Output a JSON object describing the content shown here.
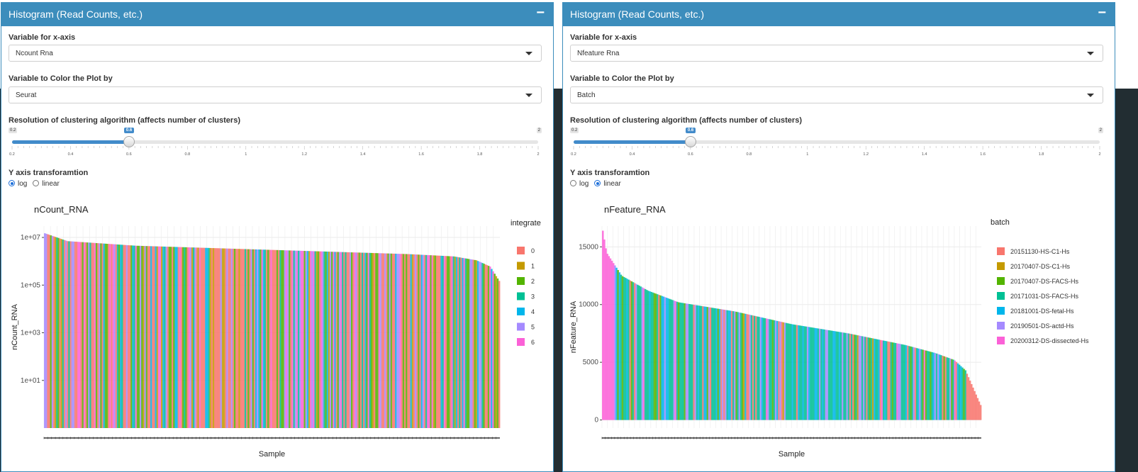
{
  "panels": [
    {
      "title": "Histogram (Read Counts, etc.)",
      "x_axis_label": "Variable for x-axis",
      "x_axis_value": "Ncount Rna",
      "color_label": "Variable to Color the Plot by",
      "color_value": "Seurat",
      "resolution_label": "Resolution of clustering algorithm (affects number of clusters)",
      "slider": {
        "min": 0.2,
        "max": 2,
        "value": 0.6,
        "min_label": "0.2",
        "max_label": "2",
        "value_label": "0.6",
        "ticks": [
          "0.2",
          "0.4",
          "0.6",
          "0.8",
          "1",
          "1.2",
          "1.4",
          "1.6",
          "1.8",
          "2"
        ]
      },
      "transform_label": "Y axis transforamtion",
      "transform_options": [
        "log",
        "linear"
      ],
      "transform_selected": "log",
      "chart_data": {
        "type": "bar",
        "title": "nCount_RNA",
        "xlabel": "Sample",
        "ylabel": "nCount_RNA",
        "y_scale": "log10",
        "ylim": [
          0.1,
          30000000
        ],
        "yticks": [
          10,
          1000,
          100000,
          10000000
        ],
        "ytick_labels": [
          "1e+01",
          "1e+03",
          "1e+05",
          "1e+07"
        ],
        "legend_title": "integrate",
        "legend_position": "right",
        "legend": [
          "0",
          "1",
          "2",
          "3",
          "4",
          "5",
          "6"
        ],
        "colors": [
          "#F8766D",
          "#C49A00",
          "#53B400",
          "#00C094",
          "#00B6EB",
          "#A58AFF",
          "#FB61D7"
        ],
        "profile_x": [
          0,
          0.05,
          0.2,
          0.5,
          0.8,
          0.9,
          0.95,
          0.98,
          1.0
        ],
        "profile_values": [
          15000000,
          7000000,
          4500000,
          3000000,
          2000000,
          1600000,
          1100000,
          600000,
          150000
        ]
      }
    },
    {
      "title": "Histogram (Read Counts, etc.)",
      "x_axis_label": "Variable for x-axis",
      "x_axis_value": "Nfeature Rna",
      "color_label": "Variable to Color the Plot by",
      "color_value": "Batch",
      "resolution_label": "Resolution of clustering algorithm (affects number of clusters)",
      "slider": {
        "min": 0.2,
        "max": 2,
        "value": 0.6,
        "min_label": "0.2",
        "max_label": "2",
        "value_label": "0.6",
        "ticks": [
          "0.2",
          "0.4",
          "0.6",
          "0.8",
          "1",
          "1.2",
          "1.4",
          "1.6",
          "1.8",
          "2"
        ]
      },
      "transform_label": "Y axis transforamtion",
      "transform_options": [
        "log",
        "linear"
      ],
      "transform_selected": "linear",
      "chart_data": {
        "type": "bar",
        "title": "nFeature_RNA",
        "xlabel": "Sample",
        "ylabel": "nFeature_RNA",
        "y_scale": "linear",
        "ylim": [
          -700,
          16800
        ],
        "yticks": [
          0,
          5000,
          10000,
          15000
        ],
        "ytick_labels": [
          "0",
          "5000",
          "10000",
          "15000"
        ],
        "legend_title": "batch",
        "legend_position": "right",
        "legend": [
          "20151130-HS-C1-Hs",
          "20170407-DS-C1-Hs",
          "20170407-DS-FACS-Hs",
          "20171031-DS-FACS-Hs",
          "20181001-DS-fetal-Hs",
          "20190501-DS-actd-Hs",
          "20200312-DS-dissected-Hs"
        ],
        "colors": [
          "#F8766D",
          "#C49A00",
          "#53B400",
          "#00C094",
          "#00B6EB",
          "#A58AFF",
          "#FB61D7"
        ],
        "profile_x": [
          0,
          0.01,
          0.05,
          0.12,
          0.2,
          0.35,
          0.5,
          0.65,
          0.8,
          0.88,
          0.93,
          0.96,
          0.98,
          1.0
        ],
        "profile_values": [
          16400,
          14500,
          12500,
          11200,
          10200,
          9400,
          8300,
          7500,
          6500,
          5800,
          5200,
          4300,
          2800,
          1300
        ]
      }
    }
  ]
}
